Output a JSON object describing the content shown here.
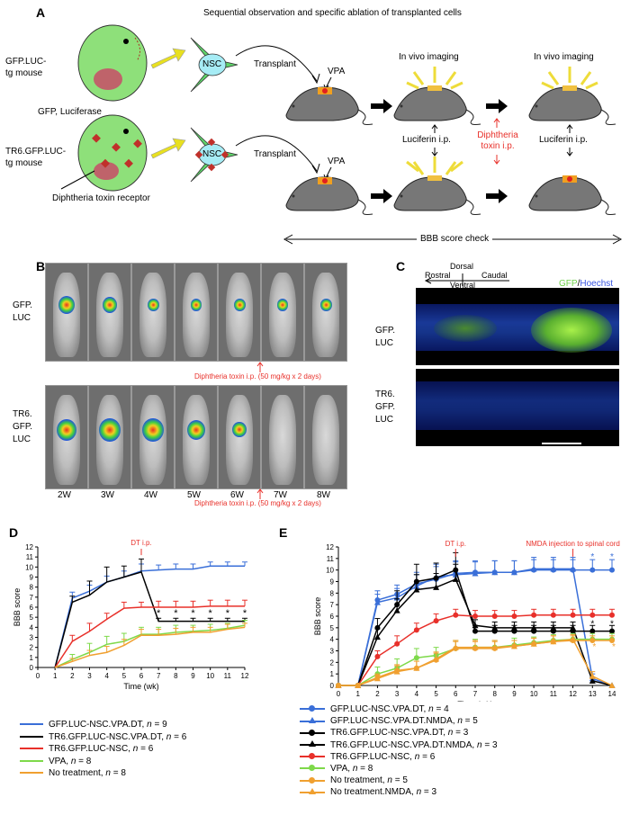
{
  "panelA": {
    "label": "A",
    "title": "Sequential observation and specific ablation of transplanted cells",
    "mouse1_label_l1": "GFP.LUC-",
    "mouse1_label_l2": "tg mouse",
    "mouse1_caption": "GFP, Luciferase",
    "mouse2_label_l1": "TR6.GFP.LUC-",
    "mouse2_label_l2": "tg mouse",
    "mouse2_caption": "Diphtheria toxin receptor",
    "nsc": "NSC",
    "transplant": "Transplant",
    "vpa": "VPA",
    "in_vivo_imaging": "In vivo imaging",
    "luciferin": "Luciferin i.p.",
    "dt_l1": "Diphtheria",
    "dt_l2": "toxin i.p.",
    "bbb": "BBB score check"
  },
  "panelB": {
    "label": "B",
    "row1_l1": "GFP.",
    "row1_l2": "LUC",
    "row2_l1": "TR6.",
    "row2_l2": "GFP.",
    "row2_l3": "LUC",
    "dt_note": "Diphtheria toxin i.p. (50 mg/kg x 2 days)",
    "weeks": [
      "2W",
      "3W",
      "4W",
      "5W",
      "6W",
      "7W",
      "8W"
    ]
  },
  "panelC": {
    "label": "C",
    "rostral": "Rostral",
    "dorsal": "Dorsal",
    "ventral": "Ventral",
    "caudal": "Caudal",
    "gfp": "GFP",
    "slash": "/",
    "hoechst": "Hoechst",
    "row1_l1": "GFP.",
    "row1_l2": "LUC",
    "row2_l1": "TR6.",
    "row2_l2": "GFP.",
    "row2_l3": "LUC"
  },
  "panelD": {
    "label": "D",
    "annotation": "DT i.p.",
    "legend": [
      {
        "name": "GFP.LUC-NSC.VPA.DT, ",
        "n": "n",
        "val": " = 9",
        "color": "#3a6fd8"
      },
      {
        "name": "TR6.GFP.LUC-NSC.VPA.DT, ",
        "n": "n",
        "val": " = 6",
        "color": "#000000"
      },
      {
        "name": "TR6.GFP.LUC-NSC, ",
        "n": "n",
        "val": " = 6",
        "color": "#e8302a"
      },
      {
        "name": "VPA, ",
        "n": "n",
        "val": " = 8",
        "color": "#7ed94a"
      },
      {
        "name": "No treatment, ",
        "n": "n",
        "val": " = 8",
        "color": "#f0a030"
      }
    ]
  },
  "panelE": {
    "label": "E",
    "annotation1": "DT i.p.",
    "annotation2": "NMDA injection to spinal cord",
    "legend": [
      {
        "name": "GFP.LUC-NSC.VPA.DT, ",
        "n": "n",
        "val": " = 4",
        "color": "#3a6fd8",
        "marker": "circle"
      },
      {
        "name": "GFP.LUC-NSC.VPA.DT.NMDA, ",
        "n": "n",
        "val": " = 5",
        "color": "#3a6fd8",
        "marker": "triangle"
      },
      {
        "name": "TR6.GFP.LUC-NSC.VPA.DT, ",
        "n": "n",
        "val": " = 3",
        "color": "#000000",
        "marker": "circle"
      },
      {
        "name": "TR6.GFP.LUC-NSC.VPA.DT.NMDA, ",
        "n": "n",
        "val": " = 3",
        "color": "#000000",
        "marker": "triangle"
      },
      {
        "name": "TR6.GFP.LUC-NSC, ",
        "n": "n",
        "val": " = 6",
        "color": "#e8302a",
        "marker": "circle"
      },
      {
        "name": "VPA, ",
        "n": "n",
        "val": " = 8",
        "color": "#7ed94a",
        "marker": "circle"
      },
      {
        "name": "No treatment, ",
        "n": "n",
        "val": " = 5",
        "color": "#f0a030",
        "marker": "circle"
      },
      {
        "name": "No treatment.NMDA, ",
        "n": "n",
        "val": " = 3",
        "color": "#f0a030",
        "marker": "triangle"
      }
    ]
  },
  "chart_data": [
    {
      "type": "line",
      "panel": "D",
      "xlabel": "Time (wk)",
      "ylabel": "BBB score",
      "x": [
        0,
        1,
        2,
        3,
        4,
        5,
        6,
        7,
        8,
        9,
        10,
        11,
        12
      ],
      "xlim": [
        0,
        12
      ],
      "ylim": [
        0,
        12
      ],
      "yticks": [
        0,
        1,
        2,
        3,
        4,
        5,
        6,
        7,
        8,
        9,
        10,
        11,
        12
      ],
      "series": [
        {
          "name": "GFP.LUC-NSC.VPA.DT, n = 9",
          "color": "#3a6fd8",
          "x": [
            1,
            2,
            3,
            4,
            5,
            6,
            7,
            8,
            9,
            10,
            11,
            12
          ],
          "values": [
            0,
            6.9,
            7.6,
            8.5,
            9.0,
            9.6,
            9.7,
            9.8,
            9.8,
            10.1,
            10.1,
            10.1
          ],
          "err": [
            0,
            0.6,
            0.6,
            0.6,
            0.6,
            0.7,
            0.5,
            0.5,
            0.5,
            0.4,
            0.4,
            0.4
          ]
        },
        {
          "name": "TR6.GFP.LUC-NSC.VPA.DT, n = 6",
          "color": "#000000",
          "x": [
            1,
            2,
            3,
            4,
            5,
            6,
            7,
            8,
            9,
            10,
            11,
            12
          ],
          "values": [
            0,
            6.5,
            7.2,
            8.5,
            9.0,
            9.5,
            4.6,
            4.6,
            4.6,
            4.6,
            4.6,
            4.6
          ],
          "err": [
            0,
            0.6,
            1.4,
            1.5,
            1.1,
            1.3,
            0.3,
            0.3,
            0.3,
            0.3,
            0.3,
            0.3
          ]
        },
        {
          "name": "TR6.GFP.LUC-NSC, n = 6",
          "color": "#e8302a",
          "x": [
            1,
            2,
            3,
            4,
            5,
            6,
            7,
            8,
            9,
            10,
            11,
            12
          ],
          "values": [
            0,
            2.6,
            3.6,
            4.8,
            5.9,
            6.0,
            6.0,
            6.0,
            6.0,
            6.1,
            6.1,
            6.1
          ],
          "err": [
            0,
            0.6,
            0.8,
            0.6,
            0.6,
            0.5,
            0.6,
            0.6,
            0.6,
            0.6,
            0.6,
            0.6
          ]
        },
        {
          "name": "VPA, n = 8",
          "color": "#7ed94a",
          "x": [
            1,
            2,
            3,
            4,
            5,
            6,
            7,
            8,
            9,
            10,
            11,
            12
          ],
          "values": [
            0,
            0.8,
            1.5,
            2.3,
            2.6,
            3.3,
            3.3,
            3.5,
            3.6,
            3.7,
            3.9,
            4.2
          ],
          "err": [
            0,
            0.5,
            0.9,
            0.8,
            0.8,
            0.7,
            0.7,
            0.7,
            0.6,
            0.6,
            0.5,
            0.5
          ]
        },
        {
          "name": "No treatment, n = 8",
          "color": "#f0a030",
          "x": [
            1,
            2,
            3,
            4,
            5,
            6,
            7,
            8,
            9,
            10,
            11,
            12
          ],
          "values": [
            0,
            0.6,
            1.2,
            1.5,
            2.2,
            3.2,
            3.2,
            3.3,
            3.5,
            3.5,
            3.8,
            4.0
          ],
          "err": [
            0,
            0.3,
            0.5,
            0.6,
            0.6,
            0.6,
            0.6,
            0.6,
            0.5,
            0.5,
            0.5,
            0.4
          ]
        }
      ],
      "annotations": [
        {
          "text": "DT i.p.",
          "x": 6
        }
      ],
      "significance": {
        "text": "*",
        "x": [
          7,
          8,
          9,
          10,
          11,
          12
        ]
      }
    },
    {
      "type": "line",
      "panel": "E",
      "xlabel": "Time (wk)",
      "ylabel": "BBB score",
      "x": [
        0,
        1,
        2,
        3,
        4,
        5,
        6,
        7,
        8,
        9,
        10,
        11,
        12,
        13,
        14
      ],
      "xlim": [
        0,
        14
      ],
      "ylim": [
        0,
        12
      ],
      "yticks": [
        0,
        1,
        2,
        3,
        4,
        5,
        6,
        7,
        8,
        9,
        10,
        11,
        12
      ],
      "series": [
        {
          "name": "GFP.LUC-NSC.VPA.DT, n = 4",
          "color": "#3a6fd8",
          "marker": "circle",
          "x": [
            0,
            1,
            2,
            3,
            4,
            5,
            6,
            7,
            8,
            9,
            10,
            11,
            12,
            13,
            14
          ],
          "values": [
            0,
            0,
            7.4,
            7.9,
            8.8,
            9.2,
            9.7,
            9.8,
            9.8,
            9.8,
            10.0,
            10.0,
            10.0,
            10.0,
            10.0
          ],
          "err": [
            0,
            0,
            0.8,
            0.8,
            1.0,
            1.1,
            1.1,
            1.0,
            1.0,
            1.0,
            0.9,
            0.9,
            0.9,
            0.9,
            0.9
          ]
        },
        {
          "name": "GFP.LUC-NSC.VPA.DT.NMDA, n = 5",
          "color": "#3a6fd8",
          "marker": "triangle",
          "x": [
            0,
            1,
            2,
            3,
            4,
            5,
            6,
            7,
            8,
            9,
            10,
            11,
            12,
            13,
            14
          ],
          "values": [
            0,
            0,
            7.2,
            7.6,
            8.6,
            9.4,
            9.6,
            9.7,
            9.8,
            9.8,
            10.1,
            10.1,
            10.1,
            0.6,
            0
          ],
          "err": [
            0,
            0,
            0.7,
            0.8,
            1.0,
            1.1,
            1.1,
            1.0,
            1.0,
            1.0,
            1.0,
            1.0,
            1.0,
            0.4,
            0
          ]
        },
        {
          "name": "TR6.GFP.LUC-NSC.VPA.DT, n = 3",
          "color": "#000000",
          "marker": "circle",
          "x": [
            0,
            1,
            2,
            3,
            4,
            5,
            6,
            7,
            8,
            9,
            10,
            11,
            12,
            13,
            14
          ],
          "values": [
            0,
            0,
            5.0,
            7.0,
            9.0,
            9.3,
            10.0,
            4.7,
            4.7,
            4.7,
            4.7,
            4.7,
            4.7,
            4.7,
            4.7
          ],
          "err": [
            0,
            0,
            0.8,
            1.2,
            1.5,
            1.3,
            1.5,
            0.5,
            0.5,
            0.5,
            0.5,
            0.5,
            0.5,
            0.5,
            0.5
          ]
        },
        {
          "name": "TR6.GFP.LUC-NSC.VPA.DT.NMDA, n = 3",
          "color": "#000000",
          "marker": "triangle",
          "x": [
            0,
            1,
            2,
            3,
            4,
            5,
            6,
            7,
            8,
            9,
            10,
            11,
            12,
            13,
            14
          ],
          "values": [
            0,
            0,
            4.2,
            6.5,
            8.3,
            8.5,
            9.2,
            5.2,
            5.0,
            5.0,
            5.0,
            5.0,
            5.0,
            0.4,
            0
          ],
          "err": [
            0,
            0,
            0.7,
            1.0,
            1.3,
            1.2,
            1.3,
            0.5,
            0.5,
            0.5,
            0.5,
            0.5,
            0.5,
            0.3,
            0
          ]
        },
        {
          "name": "TR6.GFP.LUC-NSC, n = 6",
          "color": "#e8302a",
          "marker": "circle",
          "x": [
            0,
            1,
            2,
            3,
            4,
            5,
            6,
            7,
            8,
            9,
            10,
            11,
            12,
            13,
            14
          ],
          "values": [
            0,
            0,
            2.5,
            3.6,
            4.8,
            5.6,
            6.1,
            6.0,
            6.0,
            6.0,
            6.1,
            6.1,
            6.1,
            6.1,
            6.1
          ],
          "err": [
            0,
            0,
            0.5,
            0.7,
            0.6,
            0.6,
            0.5,
            0.5,
            0.5,
            0.5,
            0.5,
            0.5,
            0.5,
            0.5,
            0.5
          ]
        },
        {
          "name": "VPA, n = 8",
          "color": "#7ed94a",
          "marker": "circle",
          "x": [
            0,
            1,
            2,
            3,
            4,
            5,
            6,
            7,
            8,
            9,
            10,
            11,
            12,
            13,
            14
          ],
          "values": [
            0,
            0,
            1.0,
            1.5,
            2.4,
            2.6,
            3.2,
            3.3,
            3.3,
            3.5,
            3.7,
            3.9,
            4.0,
            4.0,
            4.0
          ],
          "err": [
            0,
            0,
            0.6,
            0.8,
            0.8,
            0.7,
            0.7,
            0.7,
            0.6,
            0.6,
            0.5,
            0.5,
            0.5,
            0.5,
            0.5
          ]
        },
        {
          "name": "No treatment, n = 5",
          "color": "#f0a030",
          "marker": "circle",
          "x": [
            0,
            1,
            2,
            3,
            4,
            5,
            6,
            7,
            8,
            9,
            10,
            11,
            12,
            13,
            14
          ],
          "values": [
            0,
            0,
            0.7,
            1.3,
            1.5,
            2.2,
            3.2,
            3.2,
            3.2,
            3.4,
            3.6,
            3.8,
            3.9,
            3.9,
            3.9
          ],
          "err": [
            0,
            0,
            0.3,
            0.5,
            0.6,
            0.6,
            0.6,
            0.6,
            0.6,
            0.5,
            0.5,
            0.5,
            0.4,
            0.4,
            0.4
          ]
        },
        {
          "name": "No treatment.NMDA, n = 3",
          "color": "#f0a030",
          "marker": "triangle",
          "x": [
            0,
            1,
            2,
            3,
            4,
            5,
            6,
            7,
            8,
            9,
            10,
            11,
            12,
            13,
            14
          ],
          "values": [
            0,
            0,
            0.6,
            1.2,
            1.5,
            2.3,
            3.3,
            3.3,
            3.3,
            3.4,
            3.6,
            3.8,
            4.0,
            0.8,
            0
          ],
          "err": [
            0,
            0,
            0.3,
            0.5,
            0.6,
            0.6,
            0.6,
            0.6,
            0.6,
            0.5,
            0.5,
            0.5,
            0.4,
            0.4,
            0
          ]
        }
      ],
      "annotations": [
        {
          "text": "DT i.p.",
          "x": 6
        },
        {
          "text": "NMDA injection to spinal cord",
          "x": 12
        }
      ],
      "significance": {
        "text": "*",
        "black_x": [
          13,
          14
        ],
        "blue_x": [
          13,
          14
        ],
        "orange_x": [
          13,
          14
        ]
      }
    }
  ]
}
